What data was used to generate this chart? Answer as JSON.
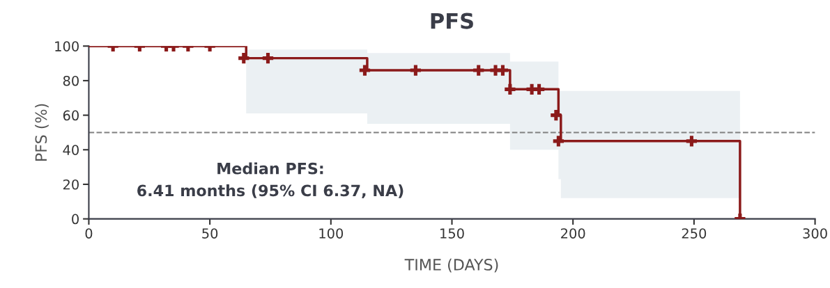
{
  "chart_data": {
    "type": "step",
    "title": "PFS",
    "xlabel": "TIME (DAYS)",
    "ylabel": "PFS (%)",
    "series": [
      {
        "color": "#8b1a1a",
        "x": [
          0,
          65,
          115,
          174,
          194,
          195,
          269
        ],
        "values": [
          100,
          93,
          86,
          75,
          60,
          45,
          0
        ],
        "lower": [
          null,
          61,
          55,
          40,
          23,
          12,
          12
        ],
        "upper": [
          null,
          98,
          96,
          91,
          74,
          74,
          74
        ]
      },
      {
        "type": "scatter",
        "color": "#8b1a1a",
        "marker": "cross",
        "x": [
          10,
          21,
          32,
          35,
          41,
          50,
          64,
          74,
          114,
          135,
          161,
          168,
          171,
          174,
          183,
          186,
          193,
          194,
          249,
          269
        ],
        "values": [
          100,
          100,
          100,
          100,
          100,
          100,
          93,
          93,
          86,
          86,
          86,
          86,
          86,
          75,
          75,
          75,
          60,
          45,
          45,
          0
        ]
      }
    ],
    "xlim": [
      0,
      300
    ],
    "xticks": [
      0,
      50,
      100,
      150,
      200,
      250,
      300
    ],
    "ylim": [
      0,
      100
    ],
    "yticks": [
      0,
      20,
      40,
      60,
      80,
      100
    ],
    "ref_lines": [
      {
        "axis": "y",
        "value": 50,
        "color": "#808080",
        "line_style": "dashed"
      }
    ],
    "annotations": [
      "Median PFS:\n6.41 months (95% CI 6.37, NA)"
    ],
    "grid": false,
    "legend": false
  }
}
